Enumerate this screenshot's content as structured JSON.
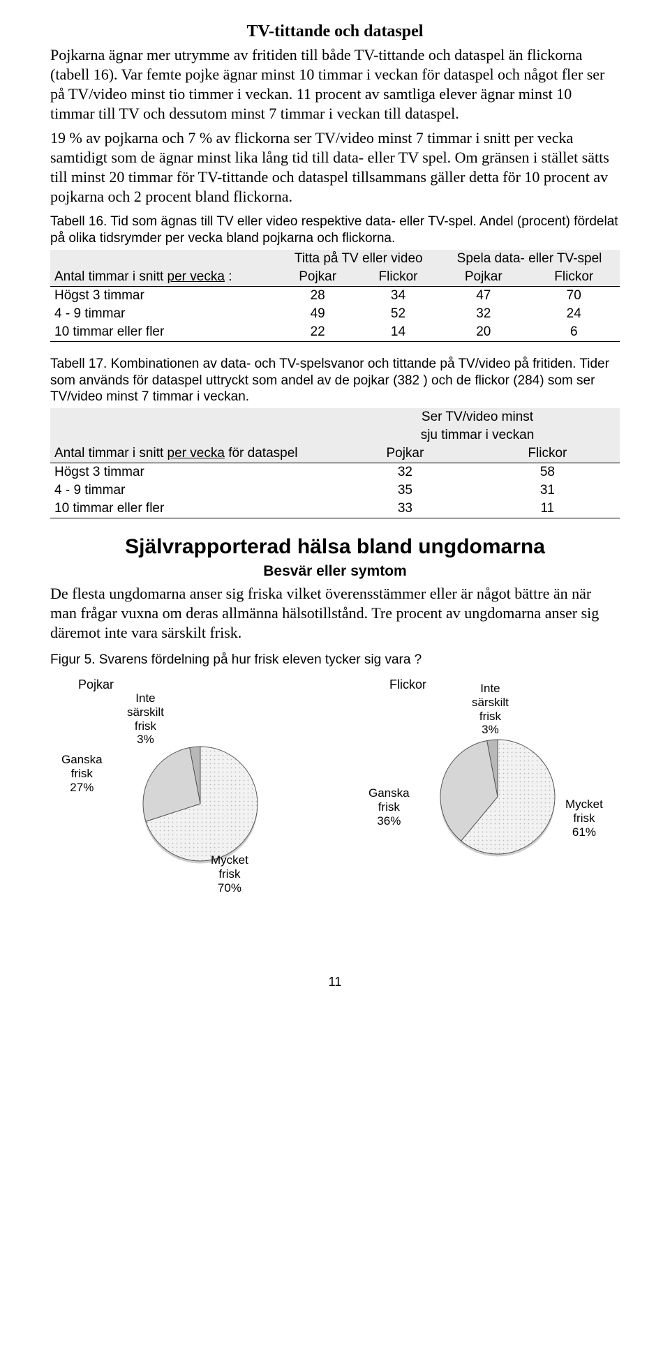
{
  "heading": "TV-tittande och dataspel",
  "para1": "Pojkarna ägnar mer utrymme av fritiden till både TV-tittande och dataspel än flickorna (tabell 16). Var femte pojke ägnar minst 10 timmar i veckan för dataspel och något fler ser på TV/video minst tio timmer i veckan. 11 procent av samtliga elever ägnar minst 10 timmar till TV och dessutom minst 7 timmar i veckan till dataspel.",
  "para2": "19 % av pojkarna och 7 % av flickorna ser TV/video minst 7 timmar i snitt per vecka samtidigt som de ägnar minst lika lång tid till data- eller TV spel. Om gränsen i stället sätts till minst 20 timmar för TV-tittande och dataspel tillsammans gäller detta för 10 procent av pojkarna och 2 procent bland flickorna.",
  "table16": {
    "caption": "Tabell 16. Tid som ägnas till TV eller video respektive data- eller TV-spel. Andel (procent) fördelat på olika tidsrymder per vecka bland pojkarna och flickorna.",
    "group1": "Titta på TV eller video",
    "group2": "Spela data- eller TV-spel",
    "rowhead_prefix": "Antal timmar i snitt ",
    "rowhead_underlined": "per vecka",
    "rowhead_suffix": " :",
    "col_pojkar": "Pojkar",
    "col_flickor": "Flickor",
    "rows": [
      {
        "label": "Högst 3 timmar",
        "v": [
          "28",
          "34",
          "47",
          "70"
        ]
      },
      {
        "label": "4 - 9 timmar",
        "v": [
          "49",
          "52",
          "32",
          "24"
        ]
      },
      {
        "label": "10 timmar eller fler",
        "v": [
          "22",
          "14",
          "20",
          "6"
        ]
      }
    ]
  },
  "table17": {
    "caption": "Tabell 17. Kombinationen av data- och TV-spelsvanor och tittande på TV/video på fritiden. Tider som används för dataspel uttryckt som andel av de pojkar (382 ) och de flickor (284) som ser TV/video minst 7 timmar i veckan.",
    "group_top": "Ser TV/video minst",
    "group_bot": "sju timmar i veckan",
    "rowhead_prefix": "Antal timmar i snitt ",
    "rowhead_underlined": "per vecka",
    "rowhead_suffix": " för dataspel",
    "col_pojkar": "Pojkar",
    "col_flickor": "Flickor",
    "rows": [
      {
        "label": "Högst 3 timmar",
        "v": [
          "32",
          "58"
        ]
      },
      {
        "label": "4 - 9 timmar",
        "v": [
          "35",
          "31"
        ]
      },
      {
        "label": "10 timmar eller fler",
        "v": [
          "33",
          "11"
        ]
      }
    ]
  },
  "section_title": "Självrapporterad hälsa bland ungdomarna",
  "section_sub": "Besvär eller symtom",
  "para3": "De flesta ungdomarna anser sig friska vilket överensstämmer eller är något bättre än när man frågar vuxna om deras allmänna hälsotillstånd. Tre procent av ungdomarna anser sig däremot inte vara särskilt frisk.",
  "figure5": {
    "caption": "Figur 5. Svarens fördelning på hur frisk eleven tycker sig vara ?",
    "colors": {
      "mycket": "#e8e8e8",
      "ganska": "#d6d6d6",
      "inte": "#b8b8b8",
      "stroke": "#333333",
      "fill_pattern": "#f0f0f0"
    },
    "pojkar": {
      "title": "Pojkar",
      "slices": [
        {
          "name": "Mycket frisk",
          "pct": 70,
          "label": "Mycket\nfrisk\n70%"
        },
        {
          "name": "Ganska frisk",
          "pct": 27,
          "label": "Ganska\nfrisk\n27%"
        },
        {
          "name": "Inte särskilt frisk",
          "pct": 3,
          "label": "Inte\nsärskilt\nfrisk\n3%"
        }
      ]
    },
    "flickor": {
      "title": "Flickor",
      "slices": [
        {
          "name": "Mycket frisk",
          "pct": 61,
          "label": "Mycket\nfrisk\n61%"
        },
        {
          "name": "Ganska frisk",
          "pct": 36,
          "label": "Ganska\nfrisk\n36%"
        },
        {
          "name": "Inte särskilt frisk",
          "pct": 3,
          "label": "Inte\nsärskilt\nfrisk\n3%"
        }
      ]
    }
  },
  "page_number": "11"
}
